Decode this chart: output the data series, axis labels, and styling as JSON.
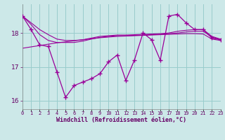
{
  "xlabel": "Windchill (Refroidissement éolien,°C)",
  "bg_color": "#cce8e8",
  "grid_color": "#99cccc",
  "line_color": "#990099",
  "x_hours": [
    0,
    1,
    2,
    3,
    4,
    5,
    6,
    7,
    8,
    9,
    10,
    11,
    12,
    13,
    14,
    15,
    16,
    17,
    18,
    19,
    20,
    21,
    22,
    23
  ],
  "windchill": [
    18.5,
    18.1,
    17.65,
    17.6,
    16.85,
    16.1,
    16.45,
    16.55,
    16.65,
    16.8,
    17.15,
    17.35,
    16.6,
    17.2,
    18.0,
    17.8,
    17.2,
    18.5,
    18.55,
    18.3,
    18.1,
    18.1,
    17.85,
    17.8
  ],
  "smooth1": [
    18.5,
    18.3,
    18.1,
    17.95,
    17.82,
    17.78,
    17.78,
    17.8,
    17.85,
    17.9,
    17.92,
    17.94,
    17.94,
    17.95,
    17.96,
    17.97,
    17.98,
    18.0,
    18.05,
    18.08,
    18.1,
    18.1,
    17.9,
    17.82
  ],
  "smooth2": [
    18.5,
    18.25,
    17.95,
    17.78,
    17.72,
    17.72,
    17.72,
    17.76,
    17.82,
    17.87,
    17.9,
    17.92,
    17.92,
    17.93,
    17.94,
    17.95,
    17.96,
    17.98,
    18.0,
    18.03,
    18.05,
    18.05,
    17.88,
    17.8
  ],
  "trend": [
    17.55,
    17.59,
    17.63,
    17.67,
    17.71,
    17.74,
    17.77,
    17.8,
    17.83,
    17.86,
    17.88,
    17.9,
    17.91,
    17.92,
    17.93,
    17.94,
    17.95,
    17.96,
    17.97,
    17.98,
    17.98,
    17.97,
    17.82,
    17.78
  ],
  "ylim": [
    15.75,
    18.85
  ],
  "yticks": [
    16,
    17,
    18
  ],
  "xlim": [
    0,
    23
  ]
}
